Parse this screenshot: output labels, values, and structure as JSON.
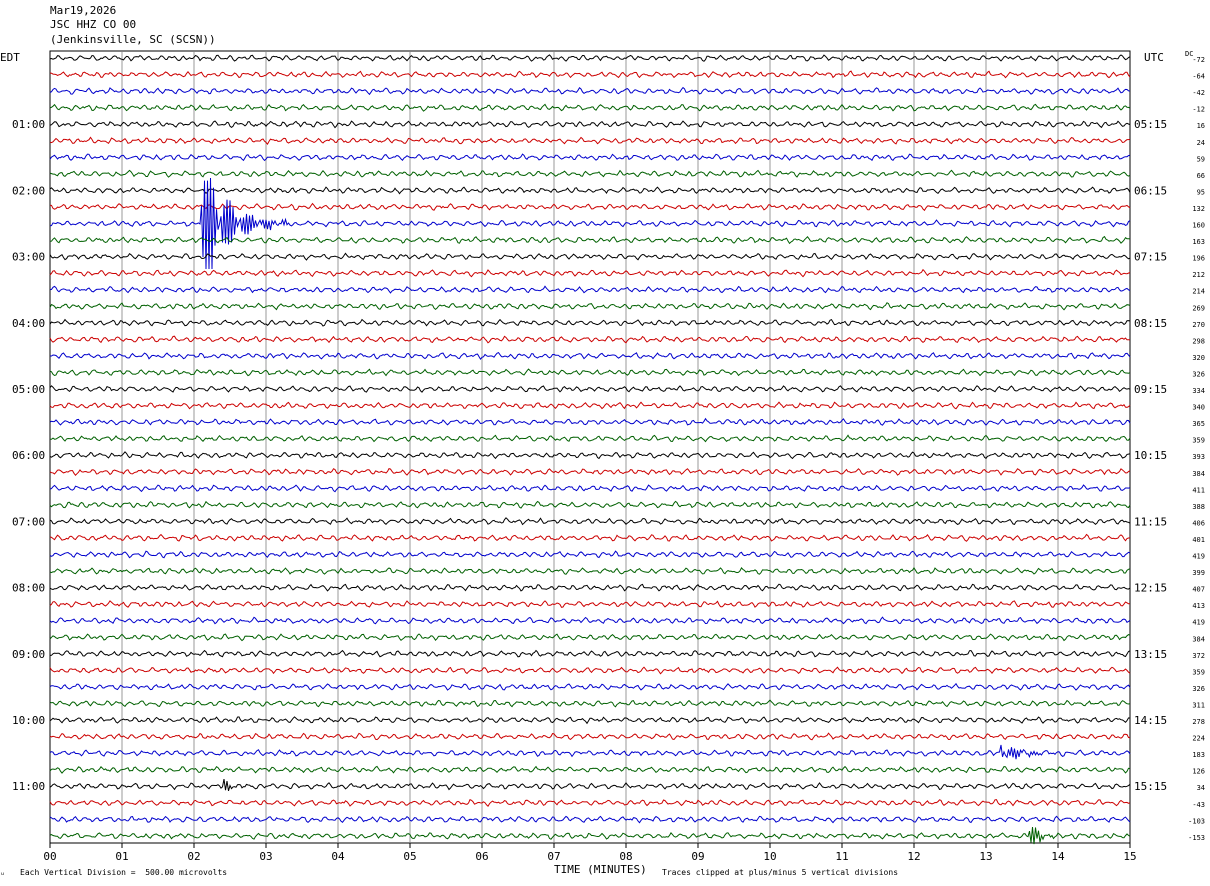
{
  "header": {
    "date": "Mar19,2026",
    "channel": "JSC HHZ CO 00",
    "station": "(Jenkinsville, SC (SCSN))"
  },
  "left_tz": "EDT",
  "right_tz": "UTC",
  "dc_label": "DC",
  "footer": {
    "scale_note": "Each Vertical Division =  500.00 microvolts",
    "xlabel": "TIME (MINUTES)",
    "clip_note": "Traces clipped at plus/minus 5 vertical divisions"
  },
  "colors": {
    "trace_cycle": [
      "#000000",
      "#cc0000",
      "#0000cc",
      "#006000"
    ],
    "grid": "#808080"
  },
  "chart_data": {
    "type": "line",
    "description_kind": "helicorder",
    "x_ticks": [
      "00",
      "01",
      "02",
      "03",
      "04",
      "05",
      "06",
      "07",
      "08",
      "09",
      "10",
      "11",
      "12",
      "13",
      "14",
      "15"
    ],
    "xlim": [
      0,
      15
    ],
    "left_labels": [
      "01:00",
      "02:00",
      "03:00",
      "04:00",
      "05:00",
      "06:00",
      "07:00",
      "08:00",
      "09:00",
      "10:00",
      "11:00"
    ],
    "right_labels": [
      "05:15",
      "06:15",
      "07:15",
      "08:15",
      "09:15",
      "10:15",
      "11:15",
      "12:15",
      "13:15",
      "14:15",
      "15:15"
    ],
    "dc_offsets": [
      -72,
      -64,
      -42,
      -12,
      16,
      24,
      59,
      66,
      95,
      132,
      160,
      163,
      196,
      212,
      214,
      269,
      270,
      298,
      320,
      326,
      334,
      340,
      365,
      359,
      393,
      384,
      411,
      388,
      406,
      401,
      419,
      399,
      407,
      413,
      419,
      384,
      372,
      359,
      326,
      311,
      278,
      224,
      183,
      126,
      34,
      -43,
      -103,
      -153
    ],
    "events": [
      {
        "row": 10,
        "start_min": 2.1,
        "peak_amp": 5,
        "duration_min": 1.2
      },
      {
        "row": 42,
        "start_min": 13.2,
        "peak_amp": 0.9,
        "duration_min": 0.8
      },
      {
        "row": 44,
        "start_min": 2.4,
        "peak_amp": 0.5,
        "duration_min": 0.4
      },
      {
        "row": 47,
        "start_min": 13.6,
        "peak_amp": 0.9,
        "duration_min": 0.5
      }
    ]
  }
}
